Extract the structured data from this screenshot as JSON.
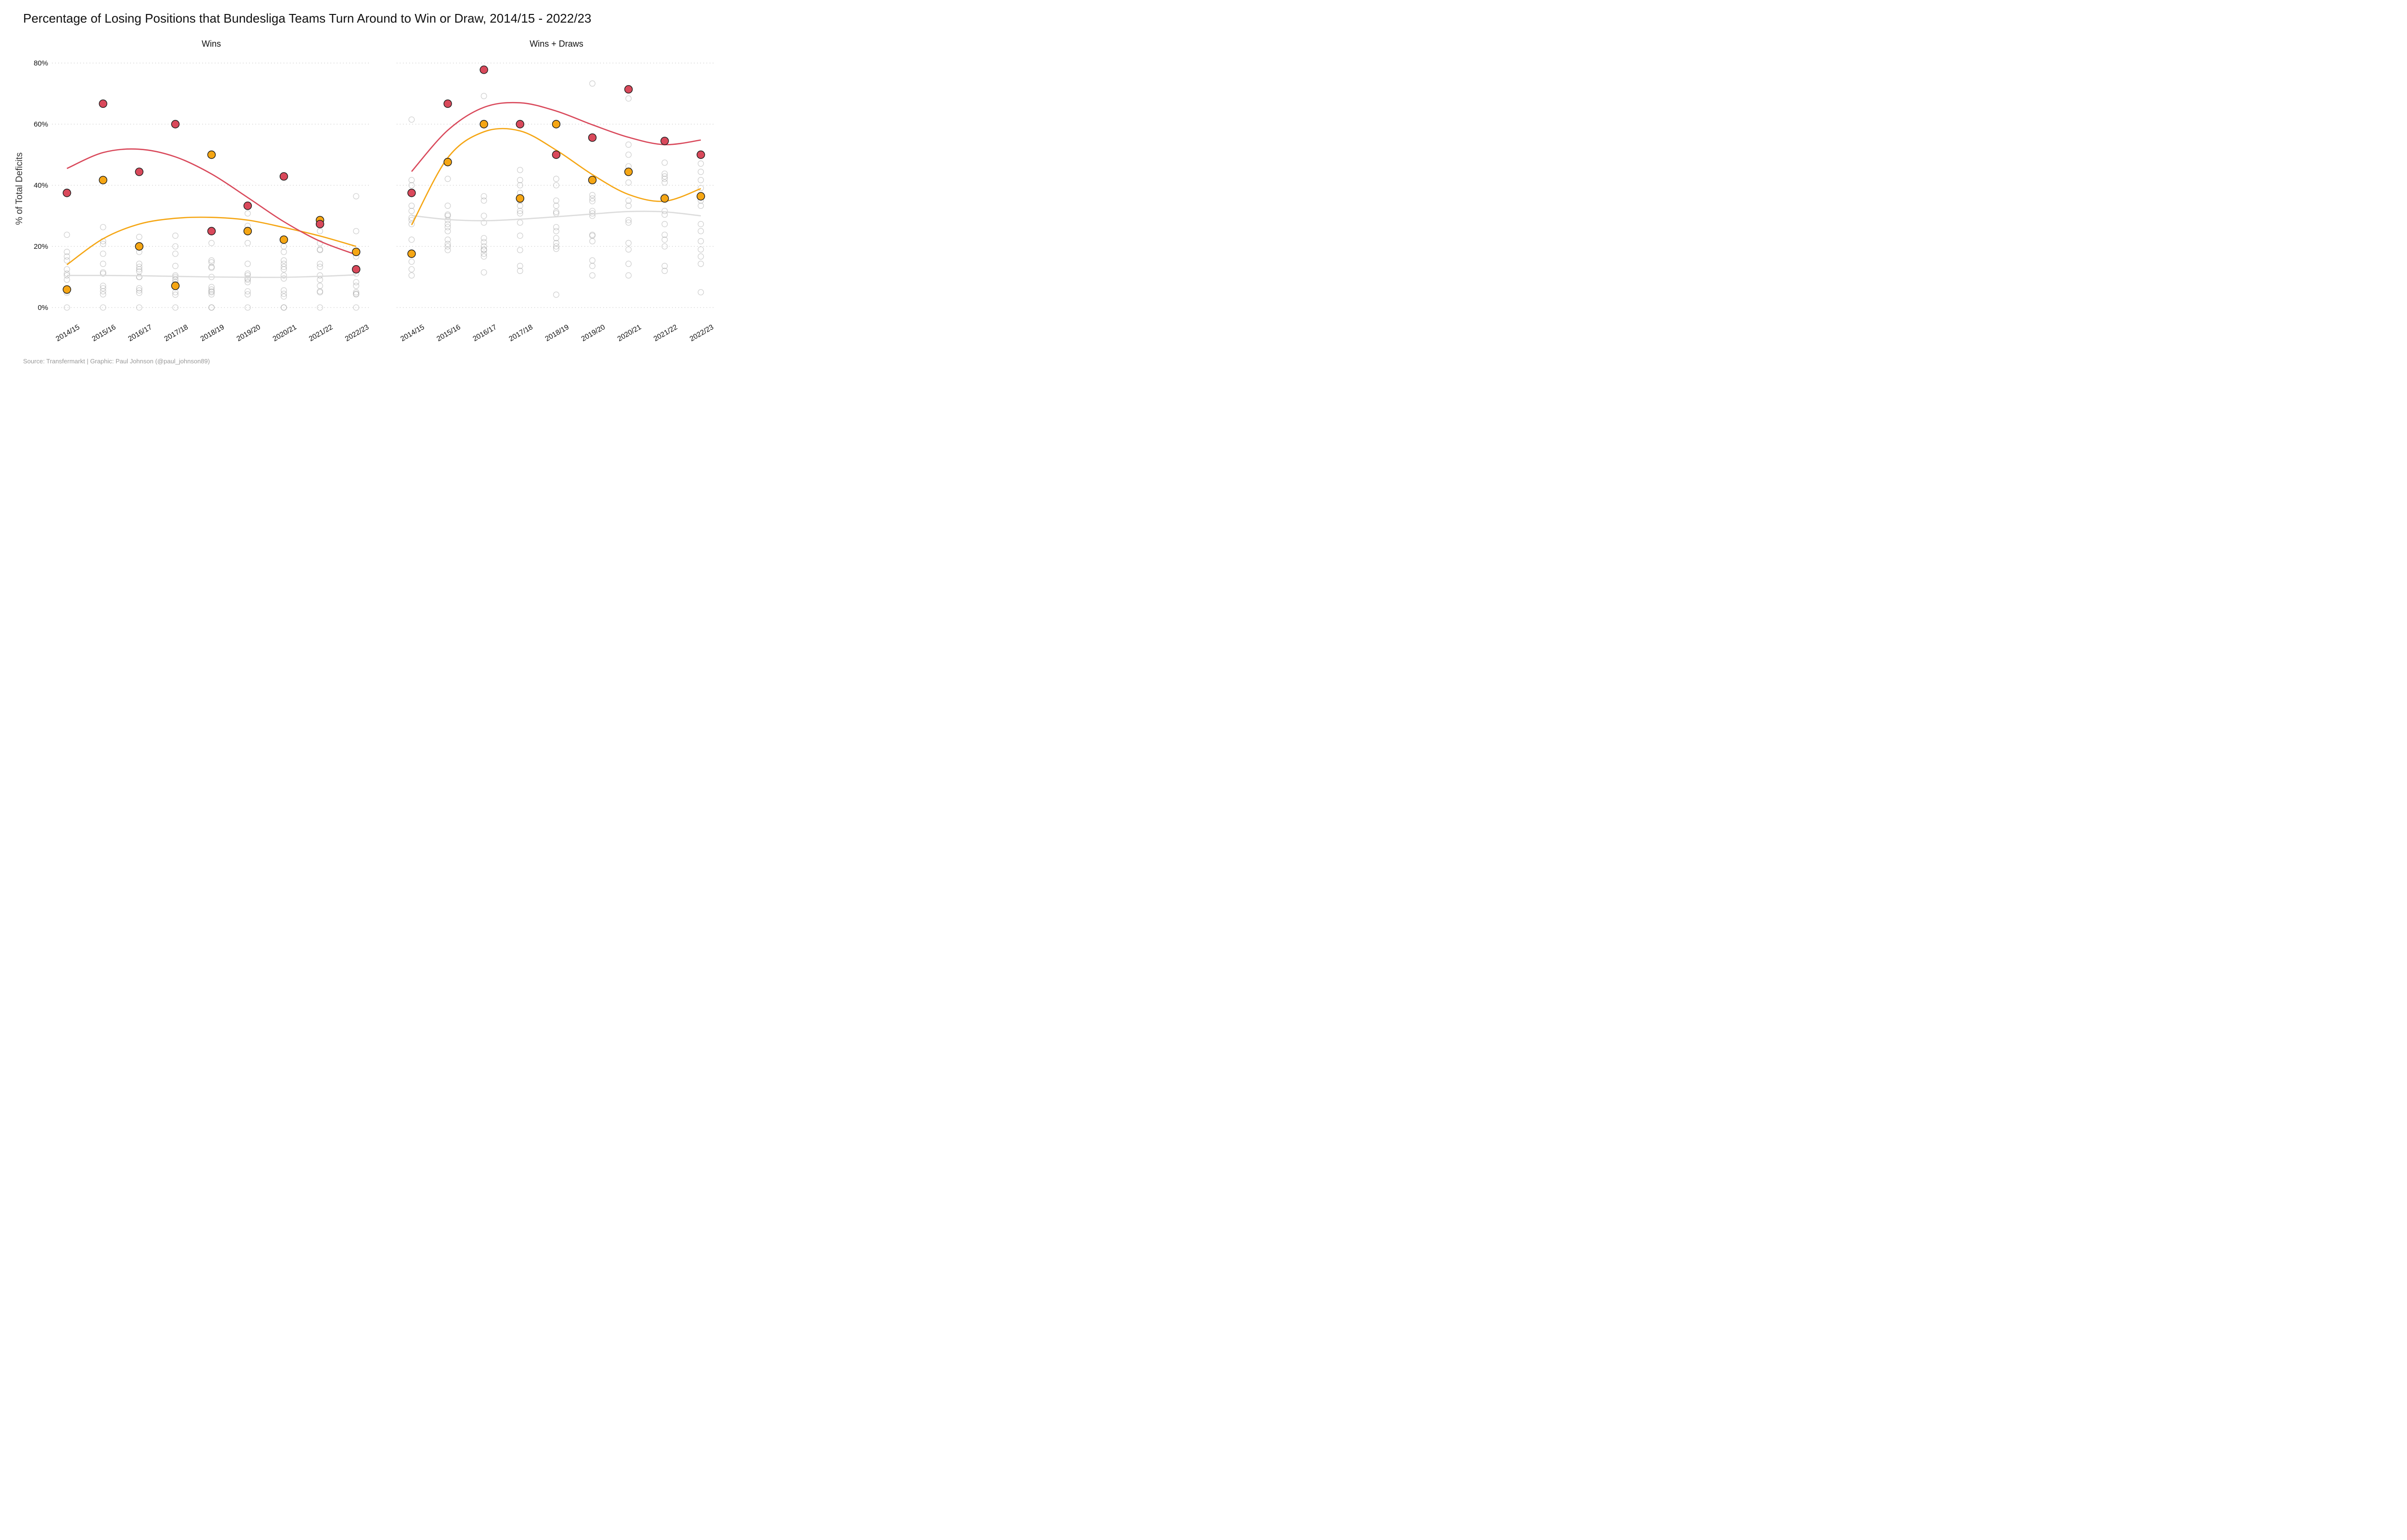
{
  "chart_data": {
    "type": "scatter",
    "title": "Percentage of Losing Positions that Bundesliga Teams Turn Around to Win or Draw, 2014/15 - 2022/23",
    "ylabel": "% of Total Deficits",
    "caption": "Source: Transfermarkt | Graphic: Paul Johnson (@paul_johnson89)",
    "ylim": [
      0,
      80
    ],
    "y_ticks": [
      "0%",
      "20%",
      "40%",
      "60%",
      "80%"
    ],
    "y_tick_values": [
      0,
      20,
      40,
      60,
      80
    ],
    "categories": [
      "2014/15",
      "2015/16",
      "2016/17",
      "2017/18",
      "2018/19",
      "2019/20",
      "2020/21",
      "2021/22",
      "2022/23"
    ],
    "colors": {
      "red": "#d9495b",
      "orange": "#f5a614",
      "grey": "#dcdcdc",
      "gridline": "#c8c8c8"
    },
    "panels": [
      {
        "subtitle": "Wins",
        "series": [
          {
            "color": "red",
            "values": [
              37.5,
              66.7,
              44.4,
              60.0,
              25.0,
              33.3,
              42.9,
              27.3,
              12.5
            ]
          },
          {
            "color": "orange",
            "values": [
              5.9,
              41.7,
              20.0,
              7.1,
              50.0,
              25.0,
              22.2,
              28.6,
              18.2
            ]
          },
          {
            "color": "grey",
            "values": [
              [
                0,
                4.8,
                5.3,
                9.1,
                10.5,
                11.1,
                12.5,
                15.4,
                16.7,
                18.2,
                23.8
              ],
              [
                0,
                4.3,
                5.3,
                6.3,
                7.1,
                11.1,
                11.5,
                14.3,
                17.6,
                20.8,
                21.7,
                26.3
              ],
              [
                0,
                4.8,
                5.6,
                6.3,
                10.0,
                10.0,
                11.8,
                12.5,
                13.3,
                14.3,
                18.2,
                23.1
              ],
              [
                0,
                4.2,
                5.0,
                7.7,
                8.3,
                9.1,
                10.0,
                10.5,
                13.6,
                17.6,
                20.0,
                23.5
              ],
              [
                0,
                0,
                4.3,
                5.0,
                5.3,
                5.9,
                6.7,
                10.0,
                13.0,
                13.3,
                14.8,
                15.4,
                21.1
              ],
              [
                0,
                4.3,
                5.3,
                8.3,
                9.1,
                9.5,
                10.5,
                11.1,
                14.3,
                21.1,
                26.7,
                30.8
              ],
              [
                0,
                0,
                3.6,
                4.5,
                5.6,
                9.5,
                10.5,
                12.5,
                13.3,
                14.3,
                15.4,
                18.2,
                20.0
              ],
              [
                0,
                5.0,
                5.3,
                7.1,
                9.1,
                10.5,
                13.3,
                14.3,
                18.8,
                19.0,
                21.1,
                25.0
              ],
              [
                0,
                4.3,
                4.5,
                5.0,
                7.1,
                8.3,
                11.1,
                16.7,
                25.0,
                36.4
              ]
            ]
          }
        ],
        "trend": {
          "red": [
            45.5,
            50.7,
            51.8,
            49.3,
            43.7,
            36.0,
            28.1,
            21.7,
            17.3
          ],
          "orange": [
            14.0,
            22.5,
            27.3,
            29.2,
            29.5,
            28.6,
            26.2,
            23.4,
            20.0
          ],
          "grey": [
            10.5,
            10.5,
            10.4,
            10.2,
            10.0,
            9.9,
            9.9,
            10.2,
            10.7
          ]
        }
      },
      {
        "subtitle": "Wins + Draws",
        "series": [
          {
            "color": "red",
            "values": [
              37.5,
              66.7,
              77.8,
              60.0,
              50.0,
              55.6,
              71.4,
              54.5,
              50.0
            ]
          },
          {
            "color": "orange",
            "values": [
              17.6,
              47.6,
              60.0,
              35.7,
              60.0,
              41.7,
              44.4,
              35.7,
              36.4
            ]
          },
          {
            "color": "grey",
            "values": [
              [
                10.5,
                12.5,
                15.0,
                22.2,
                27.3,
                28.6,
                29.4,
                31.6,
                33.3,
                40.0,
                41.7,
                61.5
              ],
              [
                18.8,
                20.0,
                20.8,
                22.2,
                25.0,
                26.3,
                27.3,
                28.6,
                30.0,
                30.4,
                33.3,
                42.1,
                47.4
              ],
              [
                11.5,
                16.7,
                17.6,
                18.8,
                19.0,
                20.0,
                21.4,
                22.7,
                27.8,
                30.0,
                35.0,
                36.4,
                69.2
              ],
              [
                12.0,
                13.6,
                18.8,
                23.5,
                27.8,
                30.8,
                31.6,
                33.3,
                35.0,
                37.5,
                40.0,
                41.7,
                45.0
              ],
              [
                4.2,
                19.2,
                20.0,
                21.1,
                22.7,
                25.0,
                26.3,
                30.8,
                31.3,
                33.3,
                35.0,
                40.0,
                42.1
              ],
              [
                10.5,
                13.6,
                15.4,
                21.7,
                23.5,
                23.8,
                30.0,
                30.8,
                31.6,
                34.8,
                35.7,
                36.8,
                73.3
              ],
              [
                10.5,
                14.3,
                19.0,
                21.1,
                27.8,
                28.6,
                33.3,
                35.0,
                40.9,
                46.2,
                50.0,
                53.3,
                68.4
              ],
              [
                12.0,
                13.6,
                20.0,
                22.2,
                23.8,
                27.3,
                30.4,
                31.6,
                36.4,
                40.9,
                42.1,
                42.9,
                43.8,
                47.4
              ],
              [
                5.0,
                14.3,
                16.7,
                19.0,
                21.7,
                25.0,
                27.3,
                33.3,
                35.0,
                39.1,
                41.7,
                44.4,
                47.1
              ]
            ]
          }
        ],
        "trend": {
          "red": [
            44.5,
            58.0,
            65.5,
            67.0,
            64.3,
            59.8,
            55.7,
            53.3,
            54.8
          ],
          "orange": [
            27.0,
            49.0,
            57.5,
            57.8,
            51.5,
            43.5,
            37.0,
            34.8,
            38.9
          ],
          "grey": [
            30.1,
            28.8,
            28.4,
            28.9,
            29.7,
            30.6,
            31.4,
            31.3,
            30.0
          ]
        }
      }
    ]
  }
}
